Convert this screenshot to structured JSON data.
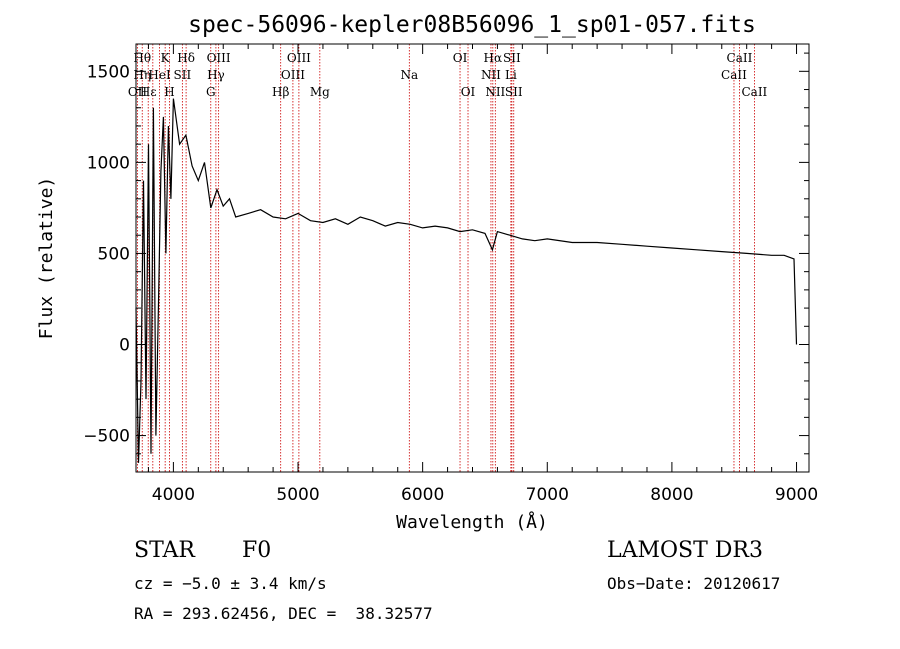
{
  "chart_data": {
    "type": "line",
    "title": "spec-56096-kepler08B56096_1_sp01-057.fits",
    "xlabel": "Wavelength (Å)",
    "ylabel": "Flux (relative)",
    "xlim": [
      3700,
      9100
    ],
    "ylim": [
      -700,
      1650
    ],
    "x_ticks": [
      4000,
      5000,
      6000,
      7000,
      8000,
      9000
    ],
    "x_tick_labels": [
      "4000",
      "5000",
      "6000",
      "7000",
      "8000",
      "9000"
    ],
    "y_ticks": [
      -500,
      0,
      500,
      1000,
      1500
    ],
    "y_tick_labels": [
      "−500",
      "0",
      "500",
      "1000",
      "1500"
    ],
    "series": [
      {
        "name": "flux",
        "color": "#000000",
        "x": [
          3700,
          3720,
          3740,
          3760,
          3780,
          3800,
          3820,
          3840,
          3860,
          3880,
          3900,
          3920,
          3940,
          3960,
          3980,
          4000,
          4050,
          4100,
          4150,
          4200,
          4250,
          4300,
          4350,
          4400,
          4450,
          4500,
          4600,
          4700,
          4800,
          4900,
          5000,
          5100,
          5200,
          5300,
          5400,
          5500,
          5600,
          5700,
          5800,
          5900,
          6000,
          6100,
          6200,
          6300,
          6400,
          6500,
          6560,
          6600,
          6700,
          6800,
          6900,
          7000,
          7200,
          7400,
          7600,
          7800,
          8000,
          8200,
          8400,
          8600,
          8800,
          8900,
          8980,
          9000
        ],
        "y": [
          200,
          -650,
          -200,
          900,
          -300,
          1100,
          -600,
          1300,
          -500,
          200,
          950,
          1250,
          500,
          1200,
          800,
          1350,
          1100,
          1150,
          980,
          900,
          1000,
          750,
          850,
          760,
          800,
          700,
          720,
          740,
          700,
          690,
          720,
          680,
          670,
          690,
          660,
          700,
          680,
          650,
          670,
          660,
          640,
          650,
          640,
          620,
          630,
          610,
          520,
          620,
          600,
          580,
          570,
          580,
          560,
          560,
          550,
          540,
          530,
          520,
          510,
          500,
          490,
          490,
          470,
          0
        ]
      }
    ],
    "line_markers": [
      {
        "x": 3712,
        "labels": [
          "",
          "",
          "OII"
        ]
      },
      {
        "x": 3750,
        "labels": [
          "Hθ",
          "Hη",
          ""
        ]
      },
      {
        "x": 3798,
        "labels": [
          "",
          "",
          "Hε"
        ]
      },
      {
        "x": 3835,
        "labels": [
          "",
          "",
          ""
        ]
      },
      {
        "x": 3889,
        "labels": [
          "",
          "HeI",
          ""
        ]
      },
      {
        "x": 3934,
        "labels": [
          "K",
          "",
          ""
        ]
      },
      {
        "x": 3969,
        "labels": [
          "",
          "",
          "H"
        ]
      },
      {
        "x": 4072,
        "labels": [
          "",
          "SII",
          ""
        ]
      },
      {
        "x": 4102,
        "labels": [
          "Hδ",
          "",
          ""
        ]
      },
      {
        "x": 4300,
        "labels": [
          "",
          "",
          "G"
        ]
      },
      {
        "x": 4341,
        "labels": [
          "",
          "Hγ",
          ""
        ]
      },
      {
        "x": 4363,
        "labels": [
          "OIII",
          "",
          ""
        ]
      },
      {
        "x": 4861,
        "labels": [
          "",
          "",
          "Hβ"
        ]
      },
      {
        "x": 4959,
        "labels": [
          "",
          "OIII",
          ""
        ]
      },
      {
        "x": 5007,
        "labels": [
          "OIII",
          "",
          ""
        ]
      },
      {
        "x": 5175,
        "labels": [
          "",
          "",
          "Mg"
        ]
      },
      {
        "x": 5893,
        "labels": [
          "",
          "Na",
          ""
        ]
      },
      {
        "x": 6300,
        "labels": [
          "OI",
          "",
          ""
        ]
      },
      {
        "x": 6364,
        "labels": [
          "",
          "",
          "OI"
        ]
      },
      {
        "x": 6548,
        "labels": [
          "",
          "NII",
          ""
        ]
      },
      {
        "x": 6563,
        "labels": [
          "Hα",
          "",
          ""
        ]
      },
      {
        "x": 6583,
        "labels": [
          "",
          "",
          "NII"
        ]
      },
      {
        "x": 6708,
        "labels": [
          "",
          "Li",
          ""
        ]
      },
      {
        "x": 6716,
        "labels": [
          "SII",
          "",
          ""
        ]
      },
      {
        "x": 6731,
        "labels": [
          "",
          "",
          "SII"
        ]
      },
      {
        "x": 8498,
        "labels": [
          "",
          "CaII",
          ""
        ]
      },
      {
        "x": 8542,
        "labels": [
          "CaII",
          "",
          ""
        ]
      },
      {
        "x": 8662,
        "labels": [
          "",
          "",
          "CaII"
        ]
      }
    ],
    "grid": false,
    "marker_color": "#cc0000"
  },
  "info": {
    "class": "STAR",
    "subclass": "F0",
    "survey": "LAMOST DR3",
    "cz": "cz = −5.0 ± 3.4 km/s",
    "obs_date": "Obs−Date: 20120617",
    "radec": "RA = 293.62456, DEC =  38.32577"
  }
}
